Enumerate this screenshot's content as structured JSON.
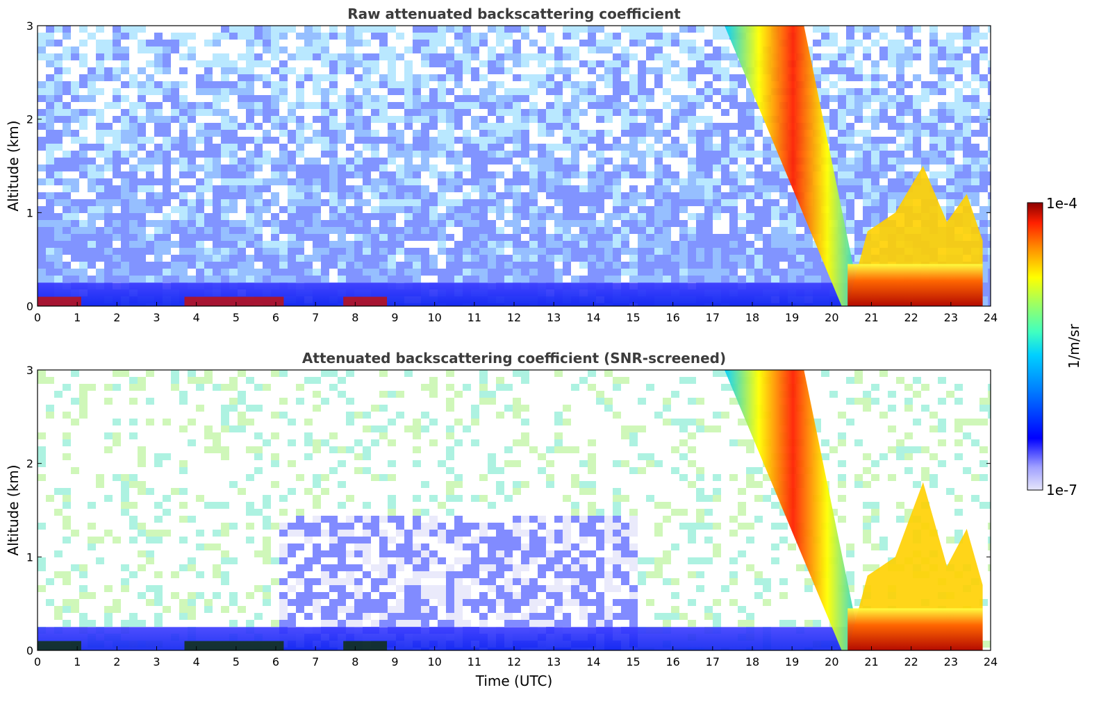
{
  "chart_data": [
    {
      "type": "heatmap",
      "title": "Raw attenuated backscattering coefficient",
      "xlabel": "",
      "ylabel": "Altitude (km)",
      "xlim": [
        0,
        24
      ],
      "ylim": [
        0,
        3
      ],
      "xticks": [
        0,
        1,
        2,
        3,
        4,
        5,
        6,
        7,
        8,
        9,
        10,
        11,
        12,
        13,
        14,
        15,
        16,
        17,
        18,
        19,
        20,
        21,
        22,
        23,
        24
      ],
      "yticks": [
        0,
        1,
        2,
        3
      ],
      "features": {
        "boundary_layer_top_km": 0.25,
        "surface_high_backscatter_intervals_utc": [
          [
            0,
            1.1
          ],
          [
            3.7,
            6.2
          ],
          [
            7.7,
            8.8
          ]
        ],
        "descending_layer_start": {
          "time": 17.3,
          "altitude": 3
        },
        "descending_layer_end": {
          "time": 20.6,
          "altitude": 0
        },
        "late_plumes_time_altitude": [
          [
            20.9,
            0.8
          ],
          [
            21.6,
            1.0
          ],
          [
            22.3,
            1.5
          ],
          [
            22.9,
            0.9
          ],
          [
            23.4,
            1.2
          ]
        ]
      }
    },
    {
      "type": "heatmap",
      "title": "Attenuated backscattering coefficient (SNR-screened)",
      "xlabel": "Time (UTC)",
      "ylabel": "Altitude (km)",
      "xlim": [
        0,
        24
      ],
      "ylim": [
        0,
        3
      ],
      "xticks": [
        0,
        1,
        2,
        3,
        4,
        5,
        6,
        7,
        8,
        9,
        10,
        11,
        12,
        13,
        14,
        15,
        16,
        17,
        18,
        19,
        20,
        21,
        22,
        23,
        24
      ],
      "yticks": [
        0,
        1,
        2,
        3
      ],
      "features": {
        "boundary_layer_top_km": 0.25,
        "surface_high_backscatter_intervals_utc": [
          [
            0,
            1.1
          ],
          [
            3.7,
            6.2
          ],
          [
            7.7,
            8.8
          ]
        ],
        "descending_layer_start": {
          "time": 17.3,
          "altitude": 3
        },
        "descending_layer_end": {
          "time": 20.6,
          "altitude": 0
        },
        "late_plumes_time_altitude": [
          [
            20.9,
            0.8
          ],
          [
            21.6,
            1.0
          ],
          [
            22.3,
            1.8
          ],
          [
            22.9,
            0.9
          ],
          [
            23.4,
            1.3
          ]
        ]
      }
    }
  ],
  "colorbar": {
    "label": "1/m/sr",
    "min_label": "1e-7",
    "max_label": "1e-4",
    "scale": "log",
    "colormap": [
      "#e6e6fa",
      "#a0a0ff",
      "#0000ff",
      "#0080ff",
      "#00d0ff",
      "#40ffc0",
      "#a0ff60",
      "#ffff00",
      "#ff9000",
      "#ff2000",
      "#8b0000"
    ]
  }
}
